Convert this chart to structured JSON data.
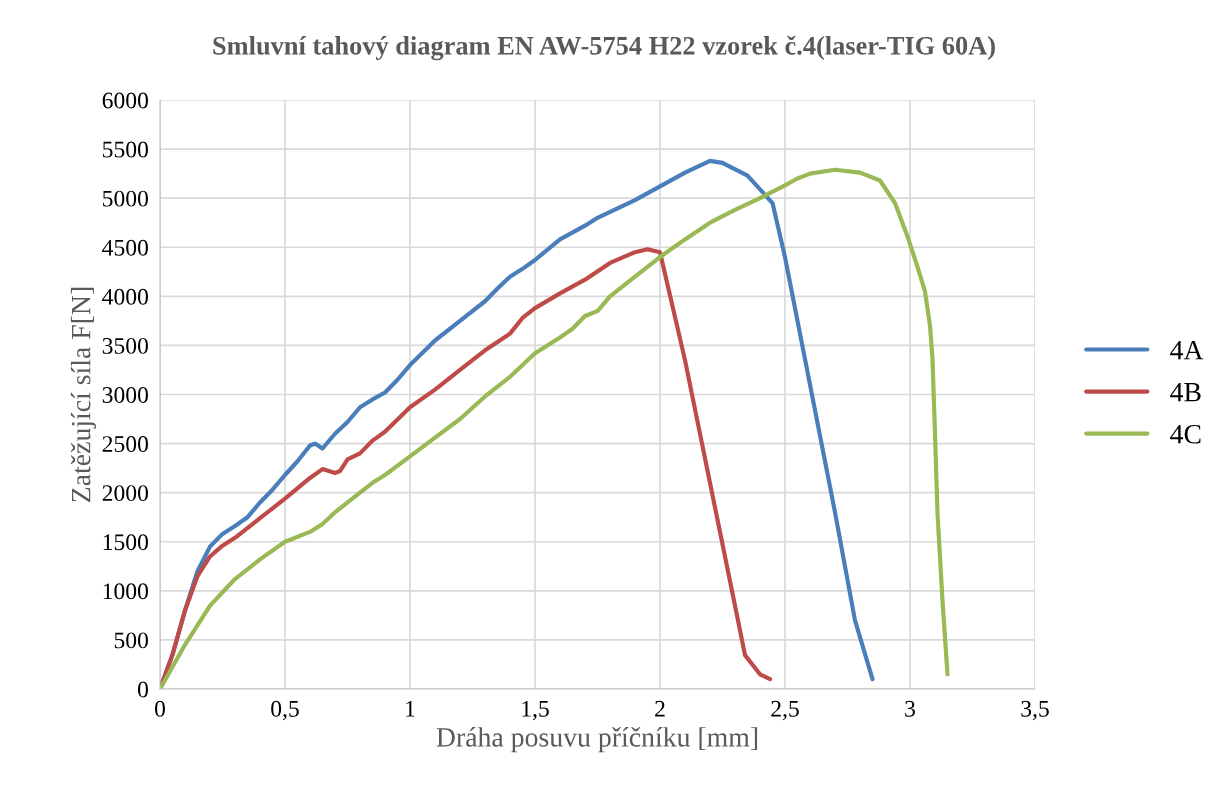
{
  "chart_data": {
    "type": "line",
    "title": "Smluvní tahový diagram EN AW-5754 H22 vzorek č.4(laser-TIG 60A)",
    "xlabel": "Dráha posuvu příčníku [mm]",
    "ylabel": "Zatěžující síla F[N]",
    "xlim": [
      0,
      3.5
    ],
    "xticks": [
      0,
      {
        "value": 0.5,
        "label": "0,5"
      },
      1,
      {
        "value": 1.5,
        "label": "1,5"
      },
      2,
      {
        "value": 2.5,
        "label": "2,5"
      },
      3,
      {
        "value": 3.5,
        "label": "3,5"
      }
    ],
    "ylim": [
      0,
      6000
    ],
    "yticks": [
      0,
      500,
      1000,
      1500,
      2000,
      2500,
      3000,
      3500,
      4000,
      4500,
      5000,
      5500,
      6000
    ],
    "grid": true,
    "legend": "right",
    "marker": "none",
    "line_style": "solid",
    "series": [
      {
        "name": "4A",
        "color": "#4a7ebb",
        "x": [
          0,
          0.05,
          0.1,
          0.15,
          0.2,
          0.25,
          0.3,
          0.35,
          0.4,
          0.45,
          0.5,
          0.55,
          0.6,
          0.62,
          0.65,
          0.7,
          0.75,
          0.8,
          0.85,
          0.9,
          0.95,
          1.0,
          1.1,
          1.2,
          1.3,
          1.35,
          1.4,
          1.45,
          1.5,
          1.6,
          1.7,
          1.75,
          1.9,
          2.0,
          2.1,
          2.2,
          2.25,
          2.35,
          2.45,
          2.5,
          2.6,
          2.7,
          2.78,
          2.85
        ],
        "values": [
          0,
          350,
          800,
          1200,
          1450,
          1580,
          1660,
          1750,
          1900,
          2030,
          2180,
          2320,
          2480,
          2500,
          2450,
          2600,
          2720,
          2870,
          2950,
          3020,
          3150,
          3300,
          3550,
          3750,
          3950,
          4080,
          4200,
          4280,
          4370,
          4580,
          4720,
          4800,
          4980,
          5120,
          5260,
          5380,
          5360,
          5230,
          4950,
          4400,
          3100,
          1800,
          700,
          100
        ]
      },
      {
        "name": "4B",
        "color": "#be4b48",
        "x": [
          0,
          0.05,
          0.1,
          0.15,
          0.2,
          0.25,
          0.3,
          0.4,
          0.5,
          0.6,
          0.65,
          0.7,
          0.72,
          0.75,
          0.8,
          0.85,
          0.9,
          1.0,
          1.1,
          1.2,
          1.3,
          1.4,
          1.45,
          1.5,
          1.6,
          1.7,
          1.8,
          1.9,
          1.95,
          2.0,
          2.1,
          2.2,
          2.3,
          2.34,
          2.4,
          2.44
        ],
        "values": [
          0,
          350,
          800,
          1150,
          1350,
          1460,
          1540,
          1740,
          1940,
          2150,
          2240,
          2200,
          2220,
          2340,
          2400,
          2530,
          2620,
          2870,
          3050,
          3250,
          3450,
          3620,
          3780,
          3880,
          4030,
          4170,
          4340,
          4450,
          4480,
          4450,
          3350,
          2100,
          850,
          345,
          150,
          100
        ]
      },
      {
        "name": "4C",
        "color": "#98b954",
        "x": [
          0,
          0.1,
          0.2,
          0.3,
          0.4,
          0.5,
          0.6,
          0.65,
          0.7,
          0.8,
          0.85,
          0.9,
          1.0,
          1.1,
          1.2,
          1.3,
          1.4,
          1.5,
          1.6,
          1.65,
          1.7,
          1.75,
          1.8,
          1.9,
          2.0,
          2.1,
          2.2,
          2.3,
          2.4,
          2.5,
          2.55,
          2.6,
          2.7,
          2.8,
          2.88,
          2.94,
          2.99,
          3.03,
          3.06,
          3.08,
          3.09,
          3.1,
          3.11,
          3.13,
          3.15
        ],
        "values": [
          0,
          450,
          850,
          1120,
          1320,
          1500,
          1600,
          1680,
          1800,
          2000,
          2100,
          2180,
          2370,
          2560,
          2750,
          2980,
          3180,
          3420,
          3580,
          3670,
          3800,
          3850,
          4000,
          4200,
          4400,
          4580,
          4750,
          4880,
          5000,
          5130,
          5200,
          5250,
          5290,
          5260,
          5180,
          4950,
          4610,
          4300,
          4050,
          3700,
          3360,
          2600,
          1790,
          900,
          150
        ]
      }
    ]
  }
}
